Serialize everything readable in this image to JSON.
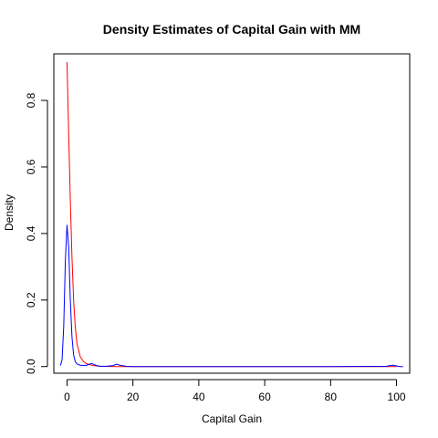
{
  "chart_data": {
    "type": "line",
    "title": "Density Estimates of Capital Gain with MM",
    "xlabel": "Capital Gain",
    "ylabel": "Density",
    "xlim": [
      -4,
      104
    ],
    "ylim": [
      -0.02,
      0.94
    ],
    "x_ticks": [
      0,
      20,
      40,
      60,
      80,
      100
    ],
    "x_tick_labels": [
      "0",
      "20",
      "40",
      "60",
      "80",
      "100"
    ],
    "y_ticks": [
      0.0,
      0.2,
      0.4,
      0.6,
      0.8
    ],
    "y_tick_labels": [
      "0.0",
      "0.2",
      "0.4",
      "0.6",
      "0.8"
    ],
    "grid": false,
    "legend": "none",
    "series": [
      {
        "color": "#ff0000",
        "x": [
          0,
          0.5,
          1,
          1.5,
          2,
          2.5,
          3,
          4,
          5,
          6,
          8,
          10,
          15,
          20,
          40,
          60,
          80,
          100
        ],
        "y": [
          0.915,
          0.7,
          0.5,
          0.33,
          0.2,
          0.12,
          0.07,
          0.03,
          0.015,
          0.008,
          0.003,
          0.001,
          0.0,
          0.0,
          0.0,
          0.0,
          0.0,
          0.0
        ]
      },
      {
        "color": "#0000ff",
        "x": [
          -2,
          -1.5,
          -1,
          -0.5,
          0,
          0.5,
          1,
          1.5,
          2,
          2.5,
          3,
          4,
          5,
          6,
          7,
          7.5,
          8,
          9,
          10,
          12,
          14,
          15,
          16,
          18,
          20,
          40,
          60,
          80,
          97,
          98,
          99,
          100,
          101,
          102
        ],
        "y": [
          0.003,
          0.02,
          0.12,
          0.32,
          0.425,
          0.36,
          0.2,
          0.09,
          0.035,
          0.015,
          0.008,
          0.004,
          0.003,
          0.004,
          0.008,
          0.009,
          0.007,
          0.003,
          0.001,
          0.001,
          0.003,
          0.007,
          0.004,
          0.001,
          0.0,
          0.0,
          0.0,
          0.0,
          0.001,
          0.003,
          0.004,
          0.002,
          0.0,
          0.0
        ]
      }
    ]
  }
}
